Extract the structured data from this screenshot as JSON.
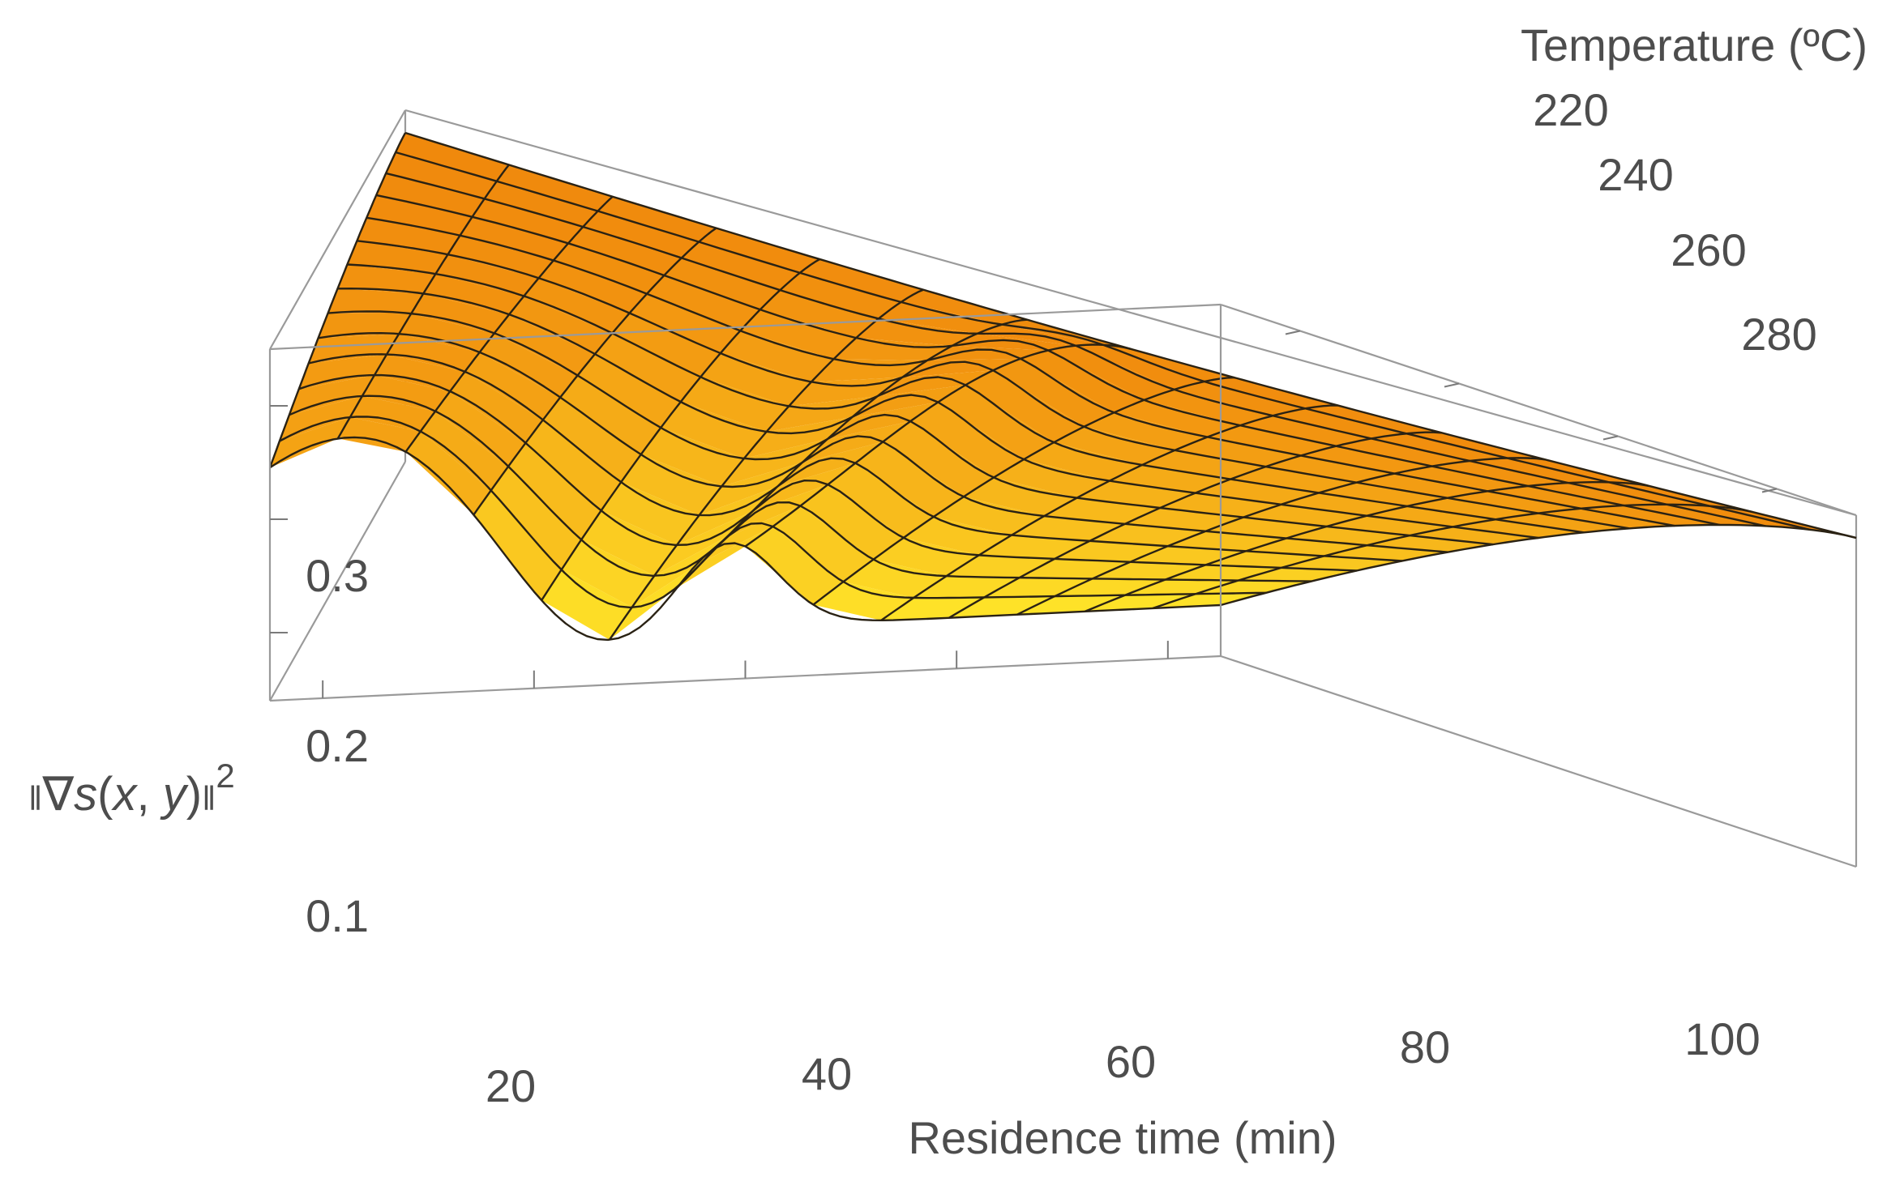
{
  "chart_data": {
    "type": "surface3d",
    "title": "",
    "xlabel": "Residence time (min)",
    "ylabel": "Temperature (ºC)",
    "zlabel": "‖∇s(x, y)‖²",
    "zlabel_parts": {
      "norm_open": "‖",
      "nabla": "∇",
      "func": "s",
      "args_open": "(",
      "x": "x",
      "comma": ", ",
      "y": "y",
      "args_close": ")",
      "norm_close": "‖",
      "power": "2"
    },
    "xlim": [
      15,
      105
    ],
    "ylim": [
      210,
      290
    ],
    "zlim": [
      0.04,
      0.35
    ],
    "x_ticks": [
      20,
      40,
      60,
      80,
      100
    ],
    "x_tick_labels": [
      "20",
      "40",
      "60",
      "80",
      "100"
    ],
    "y_ticks": [
      220,
      240,
      260,
      280
    ],
    "y_tick_labels": [
      "220",
      "240",
      "260",
      "280"
    ],
    "z_ticks": [
      0.1,
      0.2,
      0.3
    ],
    "z_tick_labels": [
      "0.1",
      "0.2",
      "0.3"
    ],
    "mesh": {
      "x_lines": 15,
      "y_lines": 15
    },
    "surface_colors": {
      "low": "#ffe82a",
      "mid": "#fcb41e",
      "high": "#f0880c",
      "shadow": "#3a2614"
    },
    "description_points": {
      "front_edge_min_at_residence_time_45": 0.135,
      "front_edge_peak_at_residence_time_58": 0.165,
      "front_edge_value_at_residence_time_100": 0.085,
      "back_edge_value": 0.33
    }
  }
}
